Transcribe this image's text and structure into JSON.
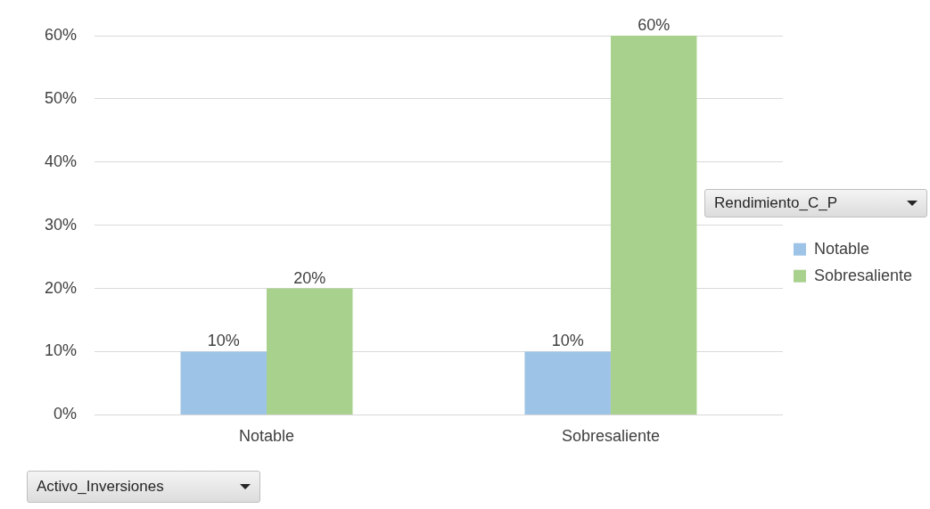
{
  "chart_data": {
    "type": "bar",
    "categories": [
      "Notable",
      "Sobresaliente"
    ],
    "series": [
      {
        "name": "Notable",
        "color": "#9dc3e6",
        "values": [
          10,
          10
        ],
        "value_labels": [
          "10%",
          "10%"
        ]
      },
      {
        "name": "Sobresaliente",
        "color": "#a9d18e",
        "values": [
          20,
          60
        ],
        "value_labels": [
          "20%",
          "60%"
        ]
      }
    ],
    "ylim": [
      0,
      60
    ],
    "yticks": [
      {
        "value": 0,
        "label": "0%"
      },
      {
        "value": 10,
        "label": "10%"
      },
      {
        "value": 20,
        "label": "20%"
      },
      {
        "value": 30,
        "label": "30%"
      },
      {
        "value": 40,
        "label": "40%"
      },
      {
        "value": 50,
        "label": "50%"
      },
      {
        "value": 60,
        "label": "60%"
      }
    ],
    "grid": "y",
    "legend": "right",
    "legend_title": "Rendimiento_C_P",
    "xlabel": "Activo_Inversiones"
  }
}
